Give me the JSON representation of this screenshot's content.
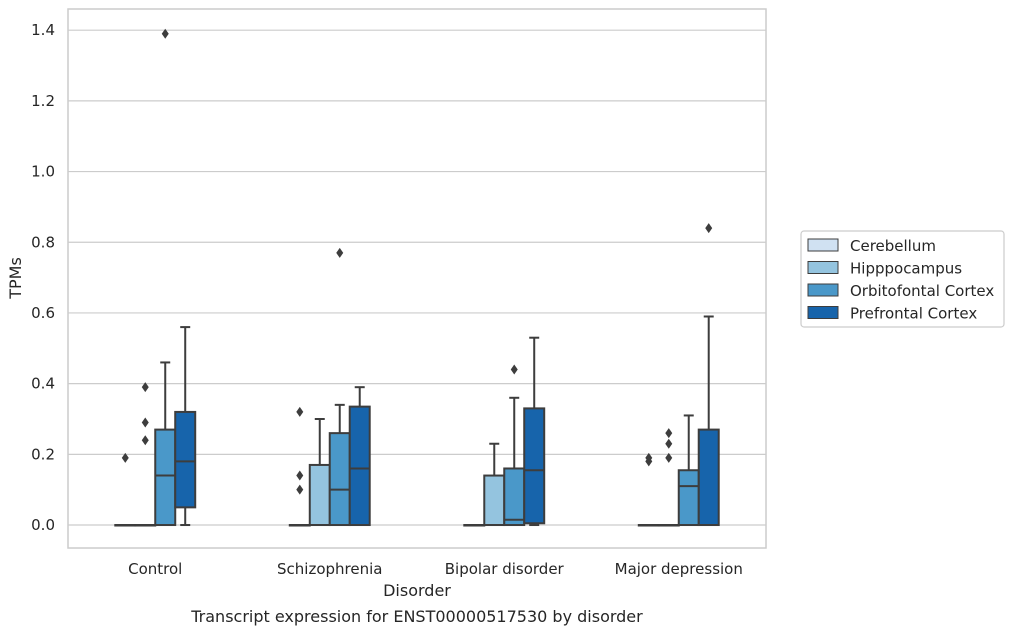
{
  "caption": "Transcript expression for ENST00000517530 by disorder",
  "chart_data": {
    "type": "box",
    "title": "",
    "xlabel": "Disorder",
    "ylabel": "TPMs",
    "ylim": [
      -0.065,
      1.46
    ],
    "yticks": [
      0.0,
      0.2,
      0.4,
      0.6,
      0.8,
      1.0,
      1.2,
      1.4
    ],
    "ytick_labels": [
      "0.0",
      "0.2",
      "0.4",
      "0.6",
      "0.8",
      "1.0",
      "1.2",
      "1.4"
    ],
    "grid": true,
    "legend_position": "right",
    "categories": [
      "Control",
      "Schizophrenia",
      "Bipolar disorder",
      "Major depression"
    ],
    "series": [
      {
        "name": "Cerebellum",
        "color": "#d0e1f2",
        "boxes": [
          {
            "q1": 0,
            "median": 0,
            "q3": 0,
            "whisker_low": 0,
            "whisker_high": 0,
            "outliers": [
              0.19
            ]
          },
          {
            "q1": 0,
            "median": 0,
            "q3": 0,
            "whisker_low": 0,
            "whisker_high": 0,
            "outliers": [
              0.1,
              0.14,
              0.32
            ]
          },
          {
            "q1": 0,
            "median": 0,
            "q3": 0,
            "whisker_low": 0,
            "whisker_high": 0,
            "outliers": []
          },
          {
            "q1": 0,
            "median": 0,
            "q3": 0,
            "whisker_low": 0,
            "whisker_high": 0,
            "outliers": [
              0.18,
              0.19
            ]
          }
        ]
      },
      {
        "name": "Hipppocampus",
        "color": "#94c4df",
        "boxes": [
          {
            "q1": 0,
            "median": 0,
            "q3": 0,
            "whisker_low": 0,
            "whisker_high": 0,
            "outliers": [
              0.24,
              0.29,
              0.39
            ]
          },
          {
            "q1": 0,
            "median": 0,
            "q3": 0.17,
            "whisker_low": 0,
            "whisker_high": 0.3,
            "outliers": []
          },
          {
            "q1": 0,
            "median": 0,
            "q3": 0.14,
            "whisker_low": 0,
            "whisker_high": 0.23,
            "outliers": []
          },
          {
            "q1": 0,
            "median": 0,
            "q3": 0,
            "whisker_low": 0,
            "whisker_high": 0,
            "outliers": [
              0.19,
              0.23,
              0.26
            ]
          }
        ]
      },
      {
        "name": "Orbitofontal Cortex",
        "color": "#4a98c9",
        "boxes": [
          {
            "q1": 0,
            "median": 0.14,
            "q3": 0.27,
            "whisker_low": 0,
            "whisker_high": 0.46,
            "outliers": [
              1.39
            ]
          },
          {
            "q1": 0,
            "median": 0.1,
            "q3": 0.26,
            "whisker_low": 0,
            "whisker_high": 0.34,
            "outliers": [
              0.77
            ]
          },
          {
            "q1": 0,
            "median": 0.015,
            "q3": 0.16,
            "whisker_low": 0,
            "whisker_high": 0.36,
            "outliers": [
              0.44
            ]
          },
          {
            "q1": 0,
            "median": 0.11,
            "q3": 0.155,
            "whisker_low": 0,
            "whisker_high": 0.31,
            "outliers": []
          }
        ]
      },
      {
        "name": "Prefrontal Cortex",
        "color": "#1764ab",
        "boxes": [
          {
            "q1": 0.05,
            "median": 0.18,
            "q3": 0.32,
            "whisker_low": 0,
            "whisker_high": 0.56,
            "outliers": []
          },
          {
            "q1": 0,
            "median": 0.16,
            "q3": 0.335,
            "whisker_low": 0,
            "whisker_high": 0.39,
            "outliers": []
          },
          {
            "q1": 0.005,
            "median": 0.155,
            "q3": 0.33,
            "whisker_low": 0,
            "whisker_high": 0.53,
            "outliers": []
          },
          {
            "q1": 0,
            "median": 0,
            "q3": 0.27,
            "whisker_low": 0,
            "whisker_high": 0.59,
            "outliers": [
              0.84
            ]
          }
        ]
      }
    ]
  }
}
